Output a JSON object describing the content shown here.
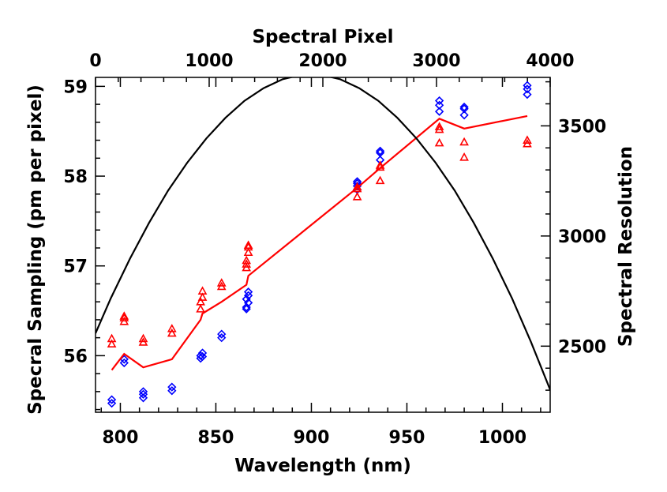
{
  "chart_data": {
    "type": "scatter",
    "title": "",
    "xlabel": "Wavelength (nm)",
    "xlim": [
      787,
      1025
    ],
    "xticks": [
      800,
      850,
      900,
      950,
      1000
    ],
    "ylabel": "Specral Sampling (pm per pixel)",
    "ylim": [
      55.37,
      59.1
    ],
    "yticks": [
      56,
      57,
      58,
      59
    ],
    "top_xlabel": "Spectral Pixel",
    "top_xlim": [
      0,
      4000
    ],
    "top_xticks": [
      0,
      1000,
      2000,
      3000,
      4000
    ],
    "right_ylabel": "Spectral Resolution",
    "right_ylim": [
      2200,
      3720
    ],
    "right_yticks": [
      2500,
      3000,
      3500
    ],
    "grid": false,
    "series": [
      {
        "marker": "diamond",
        "color": "#0000ff",
        "x": [
          795.5,
          795.5,
          802,
          802,
          812,
          812,
          812,
          827,
          827,
          842,
          842,
          843,
          843,
          853,
          853,
          866,
          866,
          866,
          867,
          867,
          867,
          924,
          924,
          924,
          924,
          936,
          936,
          936,
          967,
          967,
          967,
          980,
          980,
          980,
          1013,
          1013,
          1013
        ],
        "y": [
          55.51,
          55.47,
          55.96,
          55.92,
          55.6,
          55.57,
          55.53,
          55.65,
          55.61,
          56.0,
          55.97,
          56.03,
          55.99,
          56.24,
          56.2,
          56.52,
          56.54,
          56.63,
          56.67,
          56.71,
          56.59,
          57.94,
          57.92,
          57.89,
          57.85,
          58.28,
          58.26,
          58.18,
          58.84,
          58.79,
          58.72,
          58.77,
          58.75,
          58.68,
          59.01,
          58.97,
          58.91
        ]
      },
      {
        "marker": "triangle",
        "color": "#ff0000",
        "x": [
          795.5,
          795.5,
          802,
          802,
          802,
          812,
          812,
          827,
          827,
          842,
          842,
          843,
          843,
          853,
          853,
          866,
          866,
          866,
          867,
          867,
          867,
          924,
          924,
          924,
          936,
          936,
          936,
          967,
          967,
          967,
          980,
          980,
          1013,
          1013
        ],
        "y": [
          56.19,
          56.13,
          56.44,
          56.42,
          56.38,
          56.19,
          56.15,
          56.3,
          56.25,
          56.6,
          56.52,
          56.72,
          56.65,
          56.81,
          56.77,
          57.06,
          57.02,
          56.98,
          57.23,
          57.21,
          57.15,
          57.88,
          57.86,
          57.77,
          58.12,
          58.1,
          57.95,
          58.55,
          58.52,
          58.37,
          58.38,
          58.21,
          58.4,
          58.36
        ]
      },
      {
        "marker": "line",
        "color": "#ff0000",
        "x": [
          795.5,
          802,
          812,
          827,
          842,
          843,
          853,
          866,
          867,
          924,
          936,
          967,
          980,
          1013
        ],
        "y": [
          55.84,
          56.02,
          55.87,
          55.96,
          56.4,
          56.47,
          56.6,
          56.79,
          56.89,
          57.87,
          58.09,
          58.64,
          58.53,
          58.67
        ]
      },
      {
        "marker": "curve",
        "color": "#000000",
        "x": [
          787,
          795,
          805,
          815,
          825,
          835,
          845,
          855,
          865,
          875,
          885,
          895,
          900,
          905,
          915,
          925,
          935,
          945,
          955,
          965,
          975,
          985,
          995,
          1005,
          1015,
          1025
        ],
        "y": [
          56.25,
          56.64,
          57.08,
          57.48,
          57.84,
          58.15,
          58.42,
          58.65,
          58.84,
          58.98,
          59.08,
          59.13,
          59.13,
          59.13,
          59.08,
          58.98,
          58.84,
          58.65,
          58.42,
          58.15,
          57.84,
          57.48,
          57.08,
          56.64,
          56.15,
          55.62
        ]
      }
    ]
  }
}
